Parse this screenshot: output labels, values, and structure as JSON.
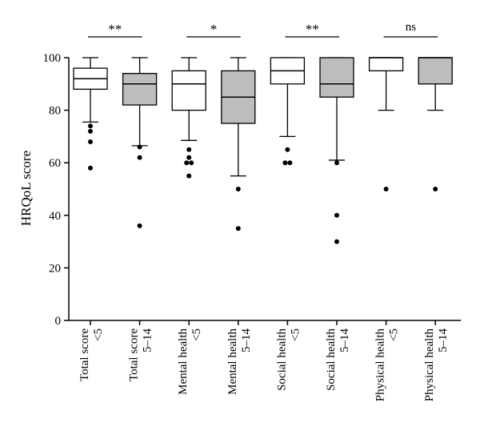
{
  "chart_data": {
    "type": "box",
    "title": "",
    "xlabel": "",
    "ylabel": "HRQoL score",
    "ylim": [
      0,
      100
    ],
    "yticks": [
      0,
      20,
      40,
      60,
      80,
      100
    ],
    "groups": [
      {
        "line1": "Total score",
        "line2": "<5",
        "fill": "#ffffff",
        "whisker_low": 75.5,
        "q1": 88,
        "median": 92,
        "q3": 96,
        "whisker_high": 100,
        "outliers": [
          74,
          72,
          68,
          58
        ]
      },
      {
        "line1": "Total score",
        "line2": "5–14",
        "fill": "#bdbdbd",
        "whisker_low": 66.5,
        "q1": 82,
        "median": 90,
        "q3": 94,
        "whisker_high": 100,
        "outliers": [
          66,
          62,
          36
        ]
      },
      {
        "line1": "Mental health",
        "line2": "<5",
        "fill": "#ffffff",
        "whisker_low": 68.5,
        "q1": 80,
        "median": 90,
        "q3": 95,
        "whisker_high": 100,
        "outliers": [
          65,
          62,
          60,
          60,
          55
        ]
      },
      {
        "line1": "Mental health",
        "line2": "5–14",
        "fill": "#bdbdbd",
        "whisker_low": 55,
        "q1": 75,
        "median": 85,
        "q3": 95,
        "whisker_high": 100,
        "outliers": [
          50,
          35
        ]
      },
      {
        "line1": "Social health",
        "line2": "<5",
        "fill": "#ffffff",
        "whisker_low": 70,
        "q1": 90,
        "median": 95,
        "q3": 100,
        "whisker_high": 100,
        "outliers": [
          65,
          60,
          60
        ]
      },
      {
        "line1": "Social health",
        "line2": "5–14",
        "fill": "#bdbdbd",
        "whisker_low": 61,
        "q1": 85,
        "median": 90,
        "q3": 100,
        "whisker_high": 100,
        "outliers": [
          60,
          40,
          30
        ]
      },
      {
        "line1": "Physical health",
        "line2": "<5",
        "fill": "#ffffff",
        "whisker_low": 80,
        "q1": 95,
        "median": 100,
        "q3": 100,
        "whisker_high": 100,
        "outliers": [
          50
        ]
      },
      {
        "line1": "Physical health",
        "line2": "5–14",
        "fill": "#bdbdbd",
        "whisker_low": 80,
        "q1": 90,
        "median": 100,
        "q3": 100,
        "whisker_high": 100,
        "outliers": [
          50
        ]
      }
    ],
    "significance": [
      {
        "label": "**",
        "from": 0,
        "to": 1
      },
      {
        "label": "*",
        "from": 2,
        "to": 3
      },
      {
        "label": "**",
        "from": 4,
        "to": 5
      },
      {
        "label": "ns",
        "from": 6,
        "to": 7
      }
    ]
  }
}
